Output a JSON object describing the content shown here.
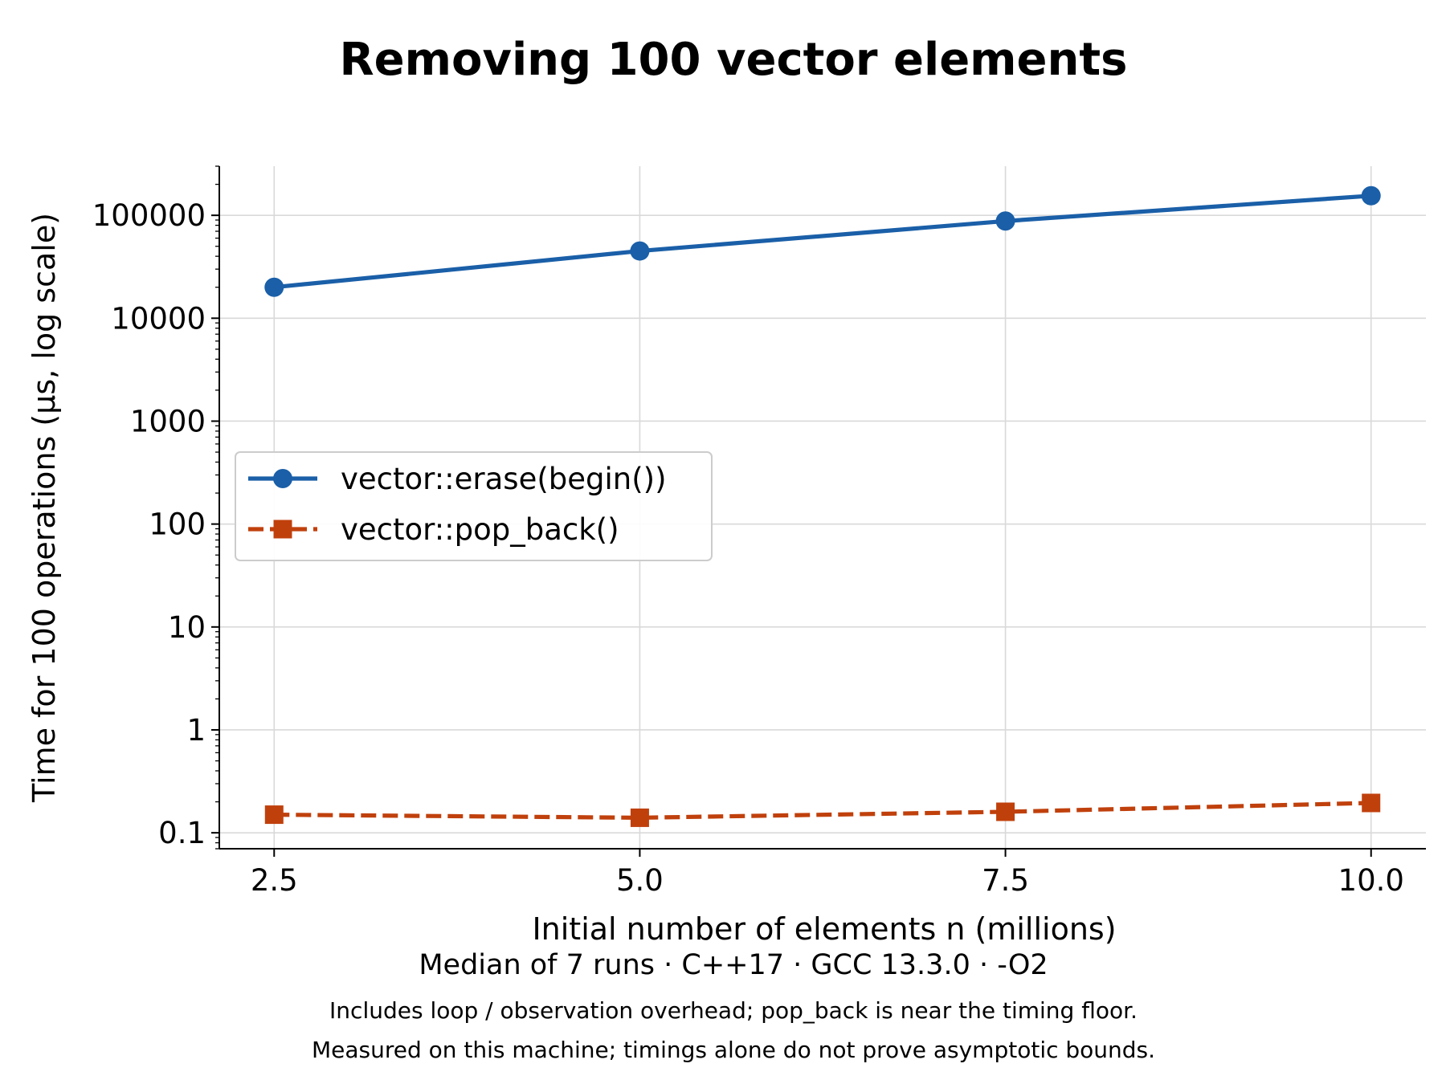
{
  "chart_data": {
    "type": "line",
    "title": "Removing 100 vector elements",
    "xlabel": "Initial number of elements n (millions)",
    "ylabel": "Time for 100 operations (µs, log scale)",
    "x": [
      2.5,
      5.0,
      7.5,
      10.0
    ],
    "x_ticks": [
      2.5,
      5.0,
      7.5,
      10.0
    ],
    "x_tick_labels": [
      "2.5",
      "5.0",
      "7.5",
      "10.0"
    ],
    "xlim": [
      2.125,
      10.375
    ],
    "y_scale": "log",
    "ylim": [
      0.07,
      300000
    ],
    "y_ticks": [
      0.1,
      1,
      10,
      100,
      1000,
      10000,
      100000
    ],
    "y_tick_labels": [
      "0.1",
      "1",
      "10",
      "100",
      "1000",
      "10000",
      "100000"
    ],
    "grid": true,
    "legend_position": "center-left",
    "series": [
      {
        "name": "vector::erase(begin())",
        "values": [
          20000,
          45000,
          88000,
          155000
        ],
        "color": "#1a5fa8",
        "line_style": "solid",
        "marker": "circle"
      },
      {
        "name": "vector::pop_back()",
        "values": [
          0.15,
          0.14,
          0.16,
          0.195
        ],
        "color": "#c0400c",
        "line_style": "dashed",
        "marker": "square"
      }
    ],
    "subtitle": "Median of 7 runs · C++17 · GCC 13.3.0 · -O2",
    "notes": [
      "Includes loop / observation overhead; pop_back is near the timing floor.",
      "Measured on this machine; timings alone do not prove asymptotic bounds."
    ]
  }
}
